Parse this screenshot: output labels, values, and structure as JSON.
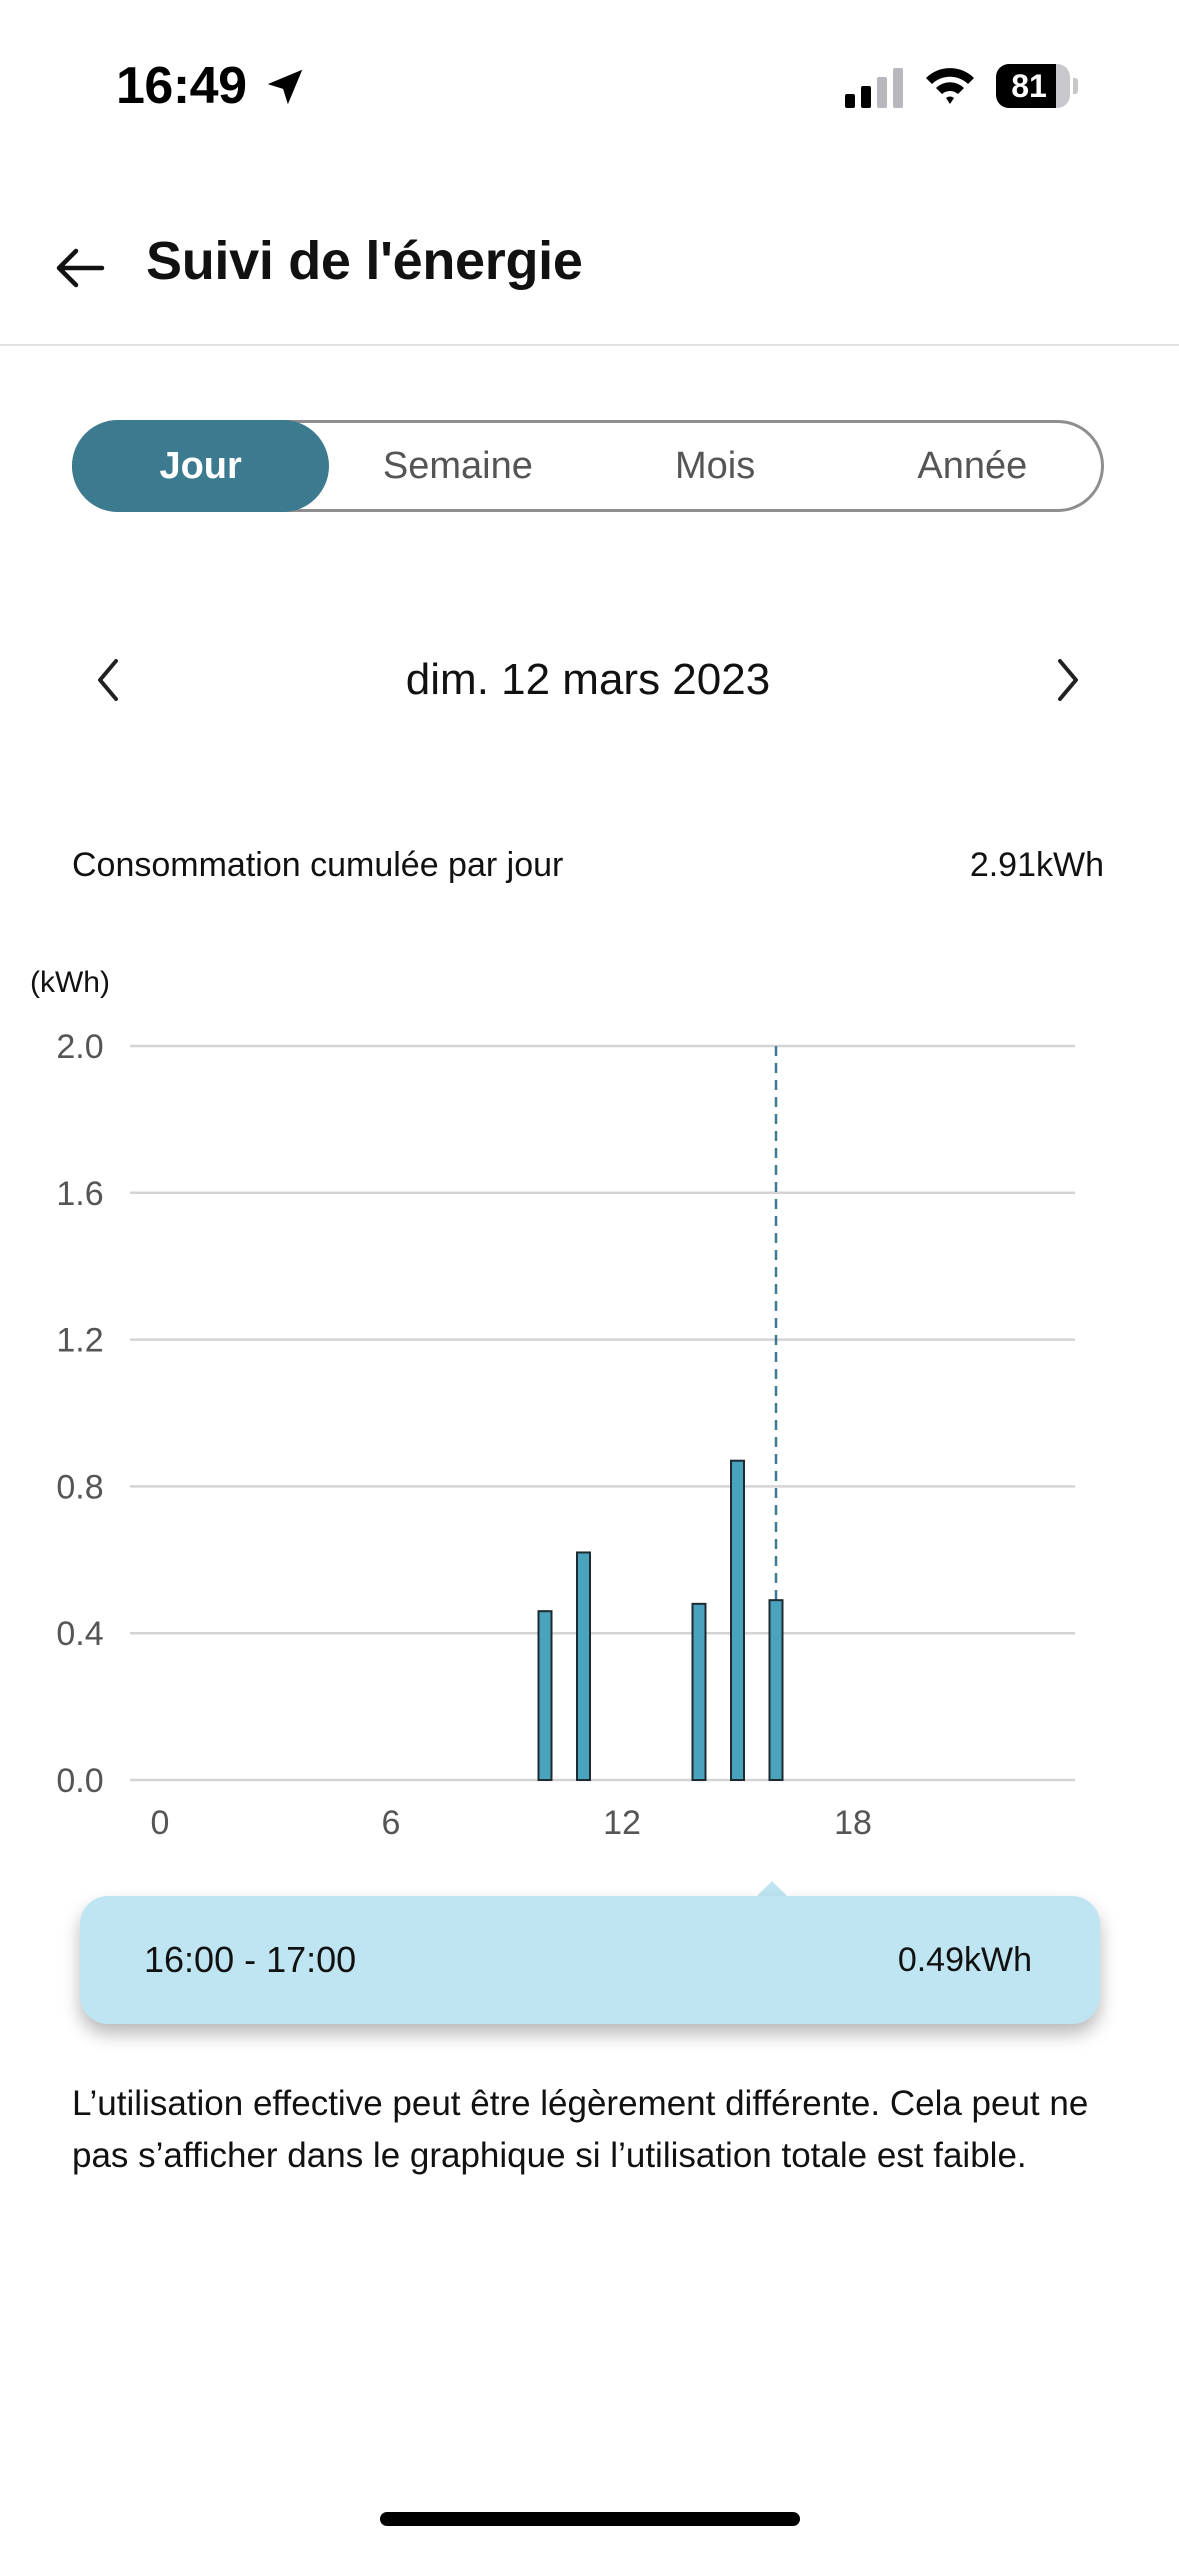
{
  "status_bar": {
    "time": "16:49",
    "battery_percent": "81",
    "battery_level": 0.81,
    "icons": [
      "location-arrow-icon",
      "cellular-signal-icon",
      "wifi-icon",
      "battery-icon"
    ]
  },
  "header": {
    "title": "Suivi de l'énergie",
    "back_icon": "arrow-left-icon"
  },
  "tabs": [
    {
      "label": "Jour",
      "active": true
    },
    {
      "label": "Semaine",
      "active": false
    },
    {
      "label": "Mois",
      "active": false
    },
    {
      "label": "Année",
      "active": false
    }
  ],
  "date_nav": {
    "label": "dim. 12 mars 2023",
    "prev_icon": "chevron-left-icon",
    "next_icon": "chevron-right-icon"
  },
  "summary": {
    "label": "Consommation cumulée par jour",
    "value": "2.91kWh"
  },
  "colors": {
    "accent": "#3b7a8f",
    "bar": "#4aa3bd",
    "tooltip_bg": "#bfe5f2",
    "grid": "#d4d4d4"
  },
  "chart_data": {
    "type": "bar",
    "unit_label": "(kWh)",
    "x_ticks": [
      0,
      6,
      12,
      18
    ],
    "xlim": [
      0,
      24
    ],
    "y_ticks": [
      "0.0",
      "0.4",
      "0.8",
      "1.2",
      "1.6",
      "2.0"
    ],
    "ylim": [
      0,
      2.0
    ],
    "grid": true,
    "bars": [
      {
        "hour": 10,
        "value": 0.46
      },
      {
        "hour": 11,
        "value": 0.62
      },
      {
        "hour": 14,
        "value": 0.48
      },
      {
        "hour": 15,
        "value": 0.87
      },
      {
        "hour": 16,
        "value": 0.49
      }
    ],
    "selected_hour": 16
  },
  "tooltip": {
    "range": "16:00 - 17:00",
    "value": "0.49kWh"
  },
  "disclaimer": "L’utilisation effective peut être légèrement différente. Cela peut ne pas s’afficher dans le graphique si l’utilisation totale est faible."
}
